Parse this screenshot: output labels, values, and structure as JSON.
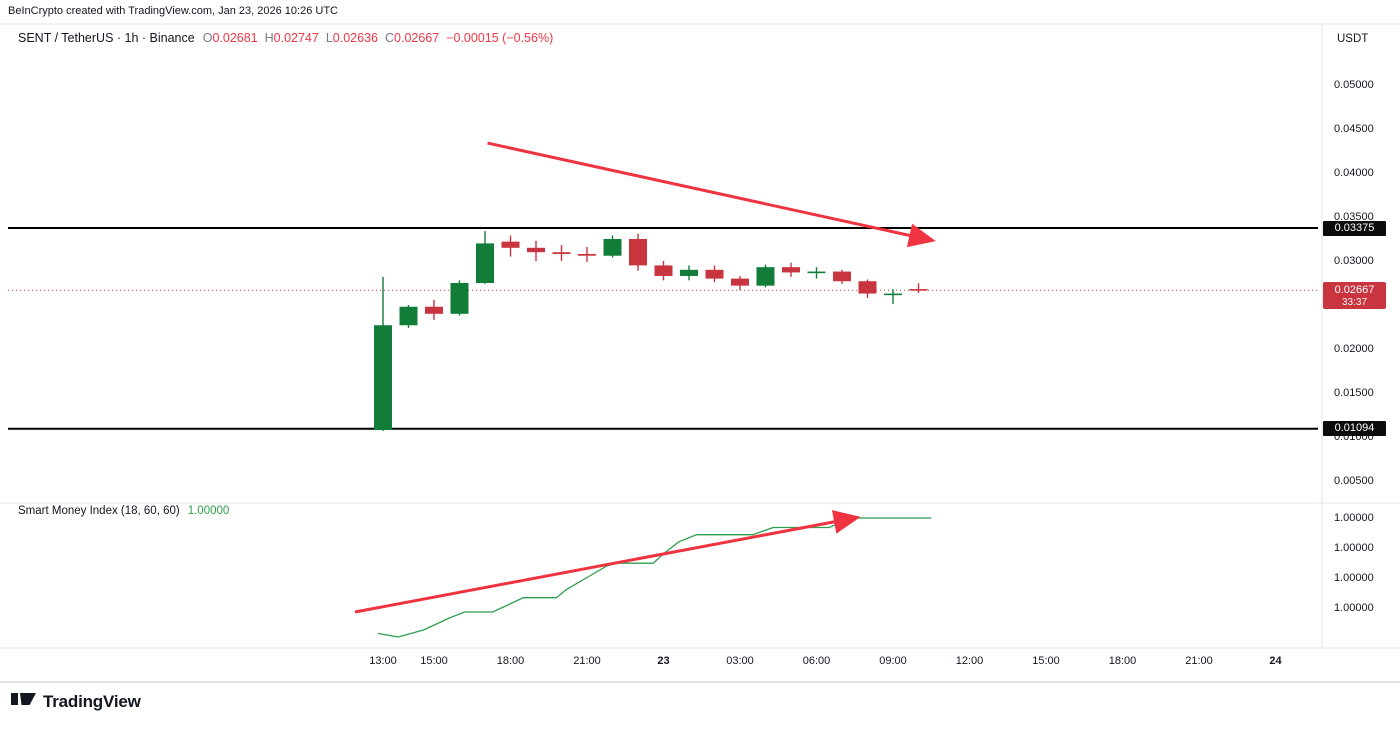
{
  "attribution": "BeInCrypto created with TradingView.com, Jan 23, 2026 10:26 UTC",
  "header": {
    "symbol": "SENT / TetherUS · 1h · Binance",
    "ohlc": [
      {
        "label": "O",
        "value": "0.02681"
      },
      {
        "label": "H",
        "value": "0.02747"
      },
      {
        "label": "L",
        "value": "0.02636"
      },
      {
        "label": "C",
        "value": "0.02667"
      }
    ],
    "change": "−0.00015 (−0.56%)",
    "currency": "USDT"
  },
  "colors": {
    "up": "#117d39",
    "down": "#c9353f",
    "arrow": "#ef3340",
    "value_red": "#f23645",
    "smi": "#2e9e4e",
    "line_black": "#000000",
    "axis_text": "#131722"
  },
  "price_axis": {
    "ticks": [
      {
        "label": "0.05000",
        "price": 0.05
      },
      {
        "label": "0.04500",
        "price": 0.045
      },
      {
        "label": "0.04000",
        "price": 0.04
      },
      {
        "label": "0.03500",
        "price": 0.035
      },
      {
        "label": "0.03000",
        "price": 0.03
      },
      {
        "label": "0.02000",
        "price": 0.02
      },
      {
        "label": "0.01500",
        "price": 0.015
      },
      {
        "label": "0.01000",
        "price": 0.01
      },
      {
        "label": "0.00500",
        "price": 0.005
      }
    ],
    "line_labels": [
      {
        "label": "0.03375",
        "price": 0.03375
      },
      {
        "label": "0.01094",
        "price": 0.01094
      }
    ],
    "current": {
      "label": "0.02667",
      "countdown": "33:37",
      "price": 0.02667
    }
  },
  "time_axis": {
    "ticks": [
      {
        "label": "13:00",
        "h": 0
      },
      {
        "label": "15:00",
        "h": 2
      },
      {
        "label": "18:00",
        "h": 5
      },
      {
        "label": "21:00",
        "h": 8
      },
      {
        "label": "23",
        "h": 11,
        "bold": true
      },
      {
        "label": "03:00",
        "h": 14
      },
      {
        "label": "06:00",
        "h": 17
      },
      {
        "label": "09:00",
        "h": 20
      },
      {
        "label": "12:00",
        "h": 23
      },
      {
        "label": "15:00",
        "h": 26
      },
      {
        "label": "18:00",
        "h": 29
      },
      {
        "label": "21:00",
        "h": 32
      },
      {
        "label": "24",
        "h": 35,
        "bold": true
      }
    ]
  },
  "smi": {
    "title": "Smart Money Index (18, 60, 60)",
    "value": "1.00000"
  },
  "footer": {
    "brand": "TradingView"
  },
  "chart_data": {
    "type": "candlestick",
    "title": "SENT / TetherUS · 1h · Binance",
    "x_axis": {
      "start": "Jan 22 13:00",
      "interval_hours": 1,
      "end_visible": "Jan 24 00:00"
    },
    "panes": [
      {
        "name": "price",
        "ylim": [
          0.0025,
          0.0569
        ],
        "hlines": [
          0.03375,
          0.01094
        ],
        "current_price": 0.02667,
        "candles": {
          "start_time": "13:00",
          "interval": "1h",
          "ohlc": [
            [
              0.0108,
              0.0282,
              0.0107,
              0.0227
            ],
            [
              0.0227,
              0.025,
              0.0224,
              0.0248
            ],
            [
              0.0248,
              0.0256,
              0.0233,
              0.024
            ],
            [
              0.024,
              0.0278,
              0.0238,
              0.0275
            ],
            [
              0.0275,
              0.0334,
              0.0274,
              0.032
            ],
            [
              0.0322,
              0.0329,
              0.0305,
              0.0315
            ],
            [
              0.0315,
              0.0323,
              0.03,
              0.031
            ],
            [
              0.031,
              0.0318,
              0.03,
              0.0308
            ],
            [
              0.0308,
              0.0316,
              0.0299,
              0.0306
            ],
            [
              0.0306,
              0.0329,
              0.0304,
              0.0325
            ],
            [
              0.0325,
              0.0331,
              0.0289,
              0.0295
            ],
            [
              0.0295,
              0.03,
              0.0278,
              0.0283
            ],
            [
              0.0283,
              0.0295,
              0.0278,
              0.029
            ],
            [
              0.029,
              0.0295,
              0.0276,
              0.028
            ],
            [
              0.028,
              0.0283,
              0.0267,
              0.0272
            ],
            [
              0.0272,
              0.0296,
              0.027,
              0.0293
            ],
            [
              0.0293,
              0.0298,
              0.0282,
              0.0287
            ],
            [
              0.0287,
              0.0293,
              0.028,
              0.0288
            ],
            [
              0.0288,
              0.029,
              0.0274,
              0.0277
            ],
            [
              0.0277,
              0.0279,
              0.0258,
              0.0263
            ],
            [
              0.0262,
              0.0268,
              0.0251,
              0.0263
            ],
            [
              0.02681,
              0.02747,
              0.02636,
              0.02667
            ]
          ]
        },
        "arrow": {
          "from": [
            4.1,
            0.0434
          ],
          "to": [
            21.45,
            0.0324
          ]
        }
      },
      {
        "name": "smi",
        "type": "line",
        "indicator": "Smart Money Index (18, 60, 60)",
        "last_value": "1.00000",
        "axis_ticks": [
          "1.00000",
          "1.00000",
          "1.00000",
          "1.00000"
        ],
        "points": [
          [
            -0.2,
            0.03
          ],
          [
            0.6,
            0.0
          ],
          [
            1.6,
            0.06
          ],
          [
            2.6,
            0.16
          ],
          [
            3.2,
            0.21
          ],
          [
            4.3,
            0.21
          ],
          [
            4.8,
            0.26
          ],
          [
            5.5,
            0.33
          ],
          [
            6.8,
            0.33
          ],
          [
            7.2,
            0.4
          ],
          [
            8.0,
            0.5
          ],
          [
            8.8,
            0.6
          ],
          [
            9.2,
            0.62
          ],
          [
            10.6,
            0.62
          ],
          [
            11.0,
            0.7
          ],
          [
            11.6,
            0.8
          ],
          [
            12.3,
            0.86
          ],
          [
            14.5,
            0.86
          ],
          [
            15.3,
            0.92
          ],
          [
            17.5,
            0.92
          ],
          [
            18.3,
            1.0
          ],
          [
            21.5,
            1.0
          ]
        ],
        "arrow": {
          "from": [
            -1.1,
            0.21
          ],
          "to": [
            18.5,
            1.0
          ]
        }
      }
    ]
  }
}
